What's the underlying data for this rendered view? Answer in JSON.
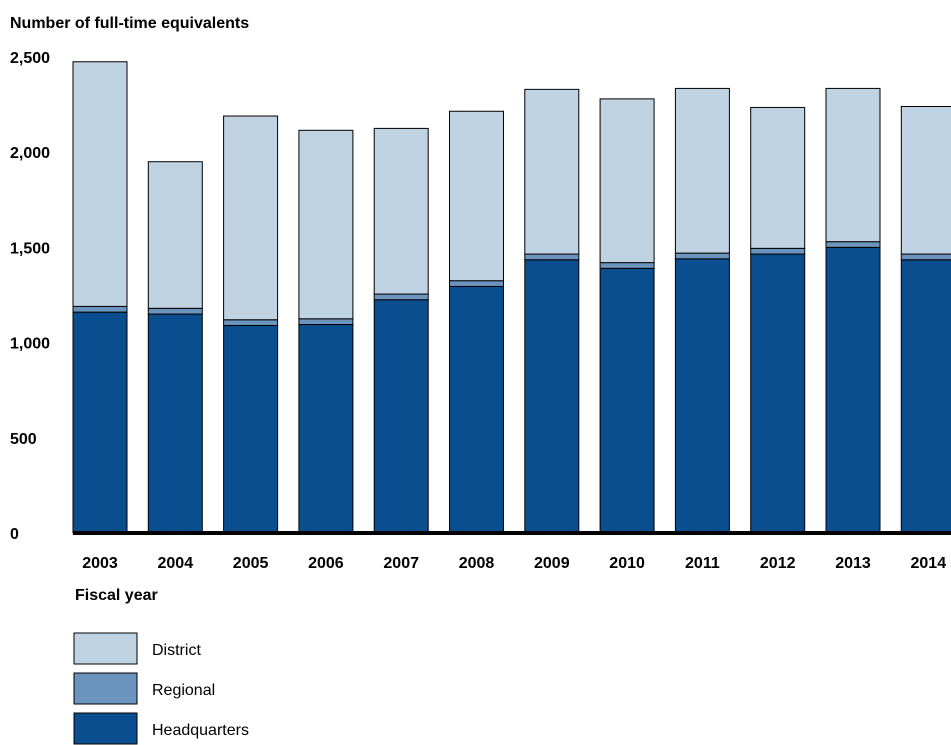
{
  "chart_data": {
    "type": "bar",
    "stacked": true,
    "ylabel": "Number of full-time equivalents",
    "xlabel": "Fiscal year",
    "ylim": [
      0,
      2500
    ],
    "y_ticks": [
      {
        "value": 0,
        "label": "0"
      },
      {
        "value": 500,
        "label": "500"
      },
      {
        "value": 1000,
        "label": "1,000"
      },
      {
        "value": 1500,
        "label": "1,500"
      },
      {
        "value": 2000,
        "label": "2,000"
      },
      {
        "value": 2500,
        "label": "2,500"
      }
    ],
    "grid": false,
    "legend_position": "bottom-left",
    "categories": [
      "2003",
      "2004",
      "2005",
      "2006",
      "2007",
      "2008",
      "2009",
      "2010",
      "2011",
      "2012",
      "2013",
      "2014"
    ],
    "series": [
      {
        "name": "Headquarters",
        "color": "#0a4e8f",
        "values": [
          1160,
          1150,
          1090,
          1095,
          1225,
          1295,
          1435,
          1390,
          1440,
          1465,
          1500,
          1435
        ]
      },
      {
        "name": "Regional",
        "color": "#6b95bf",
        "values": [
          30,
          30,
          30,
          30,
          30,
          30,
          30,
          30,
          30,
          30,
          30,
          30
        ]
      },
      {
        "name": "District",
        "color": "#c0d3e2",
        "values": [
          1285,
          770,
          1070,
          990,
          870,
          890,
          865,
          860,
          865,
          740,
          805,
          775
        ]
      }
    ],
    "legend": [
      {
        "name": "District",
        "color": "#c0d3e2"
      },
      {
        "name": "Regional",
        "color": "#6b95bf"
      },
      {
        "name": "Headquarters",
        "color": "#0a4e8f"
      }
    ]
  }
}
